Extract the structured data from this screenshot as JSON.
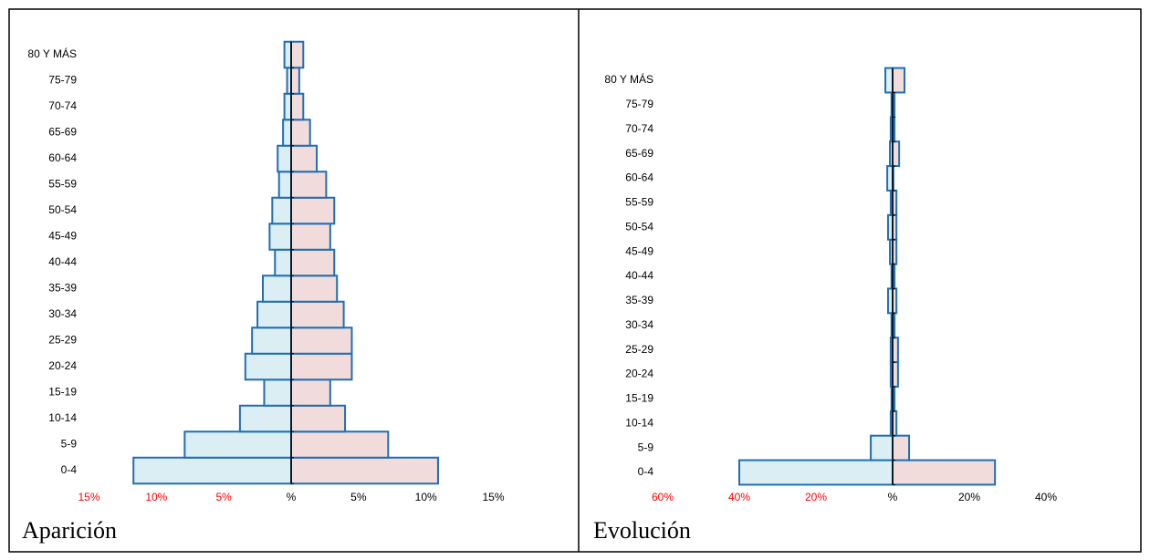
{
  "chart_data": [
    {
      "type": "bar",
      "orientation": "horizontal",
      "title": "Aparición",
      "categories": [
        "0-4",
        "5-9",
        "10-14",
        "15-19",
        "20-24",
        "25-29",
        "30-34",
        "35-39",
        "40-44",
        "45-49",
        "50-54",
        "55-59",
        "60-64",
        "65-69",
        "70-74",
        "75-79",
        "80 Y MÁS"
      ],
      "series": [
        {
          "color": "#daeef3",
          "values": [
            -11.7,
            -7.9,
            -3.8,
            -2.0,
            -3.4,
            -2.9,
            -2.5,
            -2.1,
            -1.2,
            -1.6,
            -1.4,
            -0.9,
            -1.0,
            -0.6,
            -0.5,
            -0.3,
            -0.5
          ]
        },
        {
          "color": "#f2dcdb",
          "values": [
            10.9,
            7.2,
            4.0,
            2.9,
            4.5,
            4.5,
            3.9,
            3.4,
            3.2,
            2.9,
            3.2,
            2.6,
            1.9,
            1.4,
            0.9,
            0.6,
            0.9
          ]
        }
      ],
      "edge_color": "#1f6fb2",
      "negative_tick_color": "#ff0000",
      "xlim": [
        -15,
        15
      ],
      "xticks": [
        {
          "value": -15,
          "label": "15%"
        },
        {
          "value": -10,
          "label": "10%"
        },
        {
          "value": -5,
          "label": "5%"
        },
        {
          "value": 0,
          "label": "%"
        },
        {
          "value": 5,
          "label": "5%"
        },
        {
          "value": 10,
          "label": "10%"
        },
        {
          "value": 15,
          "label": "15%"
        }
      ]
    },
    {
      "type": "bar",
      "orientation": "horizontal",
      "title": "Evolución",
      "categories": [
        "0-4",
        "5-9",
        "10-14",
        "15-19",
        "20-24",
        "25-29",
        "30-34",
        "35-39",
        "40-44",
        "45-49",
        "50-54",
        "55-59",
        "60-64",
        "65-69",
        "70-74",
        "75-79",
        "80 Y MÁS"
      ],
      "series": [
        {
          "color": "#daeef3",
          "values": [
            -40,
            -5.7,
            -0.5,
            -0.3,
            -0.5,
            -0.5,
            -0.3,
            -1.2,
            -0.3,
            -0.7,
            -1.2,
            -0.5,
            -1.4,
            -0.7,
            -0.5,
            -0.3,
            -1.9
          ]
        },
        {
          "color": "#f2dcdb",
          "values": [
            26.7,
            4.3,
            1.0,
            0.5,
            1.4,
            1.4,
            0.5,
            1.0,
            0.5,
            1.0,
            1.0,
            1.0,
            0.2,
            1.7,
            0.5,
            0.5,
            3.1
          ]
        }
      ],
      "edge_color": "#1f6fb2",
      "negative_tick_color": "#ff0000",
      "xlim": [
        -60,
        40
      ],
      "xticks": [
        {
          "value": -60,
          "label": "60%"
        },
        {
          "value": -40,
          "label": "40%"
        },
        {
          "value": -20,
          "label": "20%"
        },
        {
          "value": 0,
          "label": "%"
        },
        {
          "value": 20,
          "label": "20%"
        },
        {
          "value": 40,
          "label": "40%"
        }
      ]
    }
  ]
}
